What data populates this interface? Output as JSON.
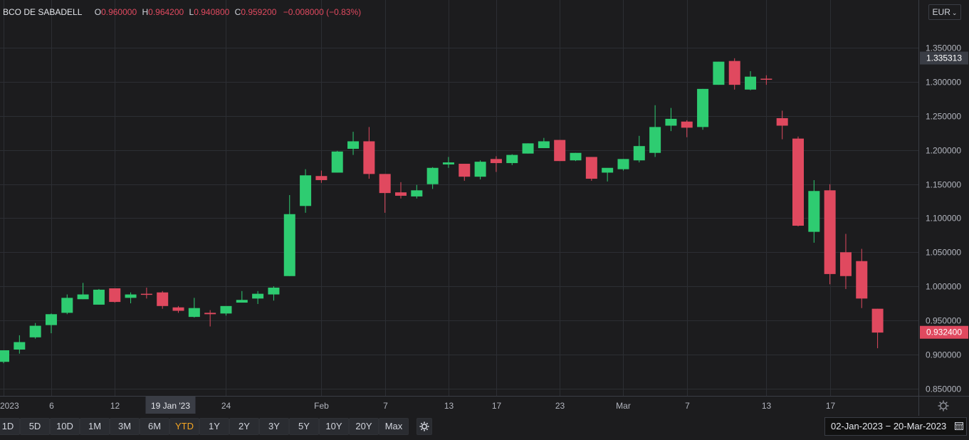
{
  "header": {
    "symbol": "BCO DE SABADELL",
    "open_label": "O",
    "open_value": "0.960000",
    "high_label": "H",
    "high_value": "0.964200",
    "low_label": "L",
    "low_value": "0.940800",
    "close_label": "C",
    "close_value": "0.959200",
    "change": "−0.008000 (−0.83%)"
  },
  "currency": {
    "label": "EUR"
  },
  "ranges": [
    "1D",
    "5D",
    "10D",
    "1M",
    "3M",
    "6M",
    "YTD",
    "1Y",
    "2Y",
    "3Y",
    "5Y",
    "10Y",
    "20Y",
    "Max"
  ],
  "active_range": "YTD",
  "date_range": "02-Jan-2023  −  20-Mar-2023",
  "icons": {
    "settings": "gear-icon",
    "calendar": "calendar-icon",
    "chevron": "chevron-down-icon",
    "corner": "settings-icon"
  },
  "colors": {
    "up": "#2ecc71",
    "down": "#e0495f",
    "background": "#1c1c1e",
    "grid": "#2c2e33",
    "active_range": "#f5a623",
    "last_price_bg": "#e0495f",
    "crosshair_bg": "#3a3d45"
  },
  "chart_data": {
    "type": "candlestick",
    "ylim": [
      0.84,
      1.37
    ],
    "y_ticks": [
      "1.350000",
      "1.300000",
      "1.250000",
      "1.200000",
      "1.150000",
      "1.100000",
      "1.050000",
      "1.000000",
      "0.950000",
      "0.900000",
      "0.850000"
    ],
    "x_ticks": [
      "2023",
      "6",
      "12",
      "19 Jan '23",
      "24",
      "Feb",
      "7",
      "13",
      "17",
      "23",
      "Mar",
      "7",
      "13",
      "17"
    ],
    "highlighted_x_label": "19 Jan '23",
    "price_labels": [
      {
        "value": 1.335313,
        "text": "1.335313",
        "style": "crosshair"
      },
      {
        "value": 0.9324,
        "text": "0.932400",
        "style": "last"
      }
    ],
    "candles": [
      {
        "o": 0.889,
        "h": 0.905,
        "l": 0.887,
        "c": 0.906
      },
      {
        "o": 0.907,
        "h": 0.928,
        "l": 0.901,
        "c": 0.918
      },
      {
        "o": 0.925,
        "h": 0.946,
        "l": 0.923,
        "c": 0.942
      },
      {
        "o": 0.943,
        "h": 0.96,
        "l": 0.931,
        "c": 0.959
      },
      {
        "o": 0.961,
        "h": 0.988,
        "l": 0.959,
        "c": 0.983
      },
      {
        "o": 0.981,
        "h": 1.005,
        "l": 0.981,
        "c": 0.988
      },
      {
        "o": 0.973,
        "h": 0.996,
        "l": 0.973,
        "c": 0.995
      },
      {
        "o": 0.997,
        "h": 0.997,
        "l": 0.976,
        "c": 0.977
      },
      {
        "o": 0.983,
        "h": 0.991,
        "l": 0.975,
        "c": 0.988
      },
      {
        "o": 0.989,
        "h": 0.998,
        "l": 0.982,
        "c": 0.988
      },
      {
        "o": 0.991,
        "h": 0.993,
        "l": 0.967,
        "c": 0.971
      },
      {
        "o": 0.969,
        "h": 0.971,
        "l": 0.961,
        "c": 0.964
      },
      {
        "o": 0.955,
        "h": 0.983,
        "l": 0.954,
        "c": 0.968
      },
      {
        "o": 0.961,
        "h": 0.965,
        "l": 0.941,
        "c": 0.959
      },
      {
        "o": 0.96,
        "h": 0.97,
        "l": 0.957,
        "c": 0.971
      },
      {
        "o": 0.976,
        "h": 0.993,
        "l": 0.976,
        "c": 0.98
      },
      {
        "o": 0.982,
        "h": 0.993,
        "l": 0.974,
        "c": 0.989
      },
      {
        "o": 0.988,
        "h": 1.0,
        "l": 0.979,
        "c": 0.998
      },
      {
        "o": 1.015,
        "h": 1.134,
        "l": 1.015,
        "c": 1.106
      },
      {
        "o": 1.118,
        "h": 1.172,
        "l": 1.108,
        "c": 1.163
      },
      {
        "o": 1.162,
        "h": 1.17,
        "l": 1.152,
        "c": 1.156
      },
      {
        "o": 1.167,
        "h": 1.199,
        "l": 1.167,
        "c": 1.198
      },
      {
        "o": 1.202,
        "h": 1.227,
        "l": 1.193,
        "c": 1.213
      },
      {
        "o": 1.213,
        "h": 1.234,
        "l": 1.158,
        "c": 1.165
      },
      {
        "o": 1.165,
        "h": 1.165,
        "l": 1.108,
        "c": 1.137
      },
      {
        "o": 1.138,
        "h": 1.153,
        "l": 1.129,
        "c": 1.133
      },
      {
        "o": 1.132,
        "h": 1.149,
        "l": 1.129,
        "c": 1.141
      },
      {
        "o": 1.15,
        "h": 1.175,
        "l": 1.143,
        "c": 1.174
      },
      {
        "o": 1.179,
        "h": 1.19,
        "l": 1.174,
        "c": 1.182
      },
      {
        "o": 1.18,
        "h": 1.18,
        "l": 1.155,
        "c": 1.161
      },
      {
        "o": 1.161,
        "h": 1.185,
        "l": 1.157,
        "c": 1.183
      },
      {
        "o": 1.187,
        "h": 1.191,
        "l": 1.168,
        "c": 1.181
      },
      {
        "o": 1.181,
        "h": 1.194,
        "l": 1.178,
        "c": 1.193
      },
      {
        "o": 1.195,
        "h": 1.21,
        "l": 1.195,
        "c": 1.21
      },
      {
        "o": 1.203,
        "h": 1.218,
        "l": 1.203,
        "c": 1.213
      },
      {
        "o": 1.215,
        "h": 1.215,
        "l": 1.184,
        "c": 1.184
      },
      {
        "o": 1.185,
        "h": 1.196,
        "l": 1.184,
        "c": 1.196
      },
      {
        "o": 1.19,
        "h": 1.19,
        "l": 1.155,
        "c": 1.158
      },
      {
        "o": 1.167,
        "h": 1.173,
        "l": 1.154,
        "c": 1.174
      },
      {
        "o": 1.172,
        "h": 1.187,
        "l": 1.17,
        "c": 1.187
      },
      {
        "o": 1.185,
        "h": 1.221,
        "l": 1.182,
        "c": 1.206
      },
      {
        "o": 1.196,
        "h": 1.266,
        "l": 1.19,
        "c": 1.234
      },
      {
        "o": 1.236,
        "h": 1.262,
        "l": 1.228,
        "c": 1.246
      },
      {
        "o": 1.242,
        "h": 1.244,
        "l": 1.219,
        "c": 1.233
      },
      {
        "o": 1.234,
        "h": 1.29,
        "l": 1.23,
        "c": 1.29
      },
      {
        "o": 1.296,
        "h": 1.33,
        "l": 1.296,
        "c": 1.33
      },
      {
        "o": 1.331,
        "h": 1.335,
        "l": 1.289,
        "c": 1.296
      },
      {
        "o": 1.289,
        "h": 1.316,
        "l": 1.288,
        "c": 1.308
      },
      {
        "o": 1.305,
        "h": 1.31,
        "l": 1.296,
        "c": 1.304
      },
      {
        "o": 1.247,
        "h": 1.258,
        "l": 1.216,
        "c": 1.236
      },
      {
        "o": 1.217,
        "h": 1.22,
        "l": 1.088,
        "c": 1.089
      },
      {
        "o": 1.08,
        "h": 1.156,
        "l": 1.064,
        "c": 1.14
      },
      {
        "o": 1.141,
        "h": 1.15,
        "l": 1.003,
        "c": 1.018
      },
      {
        "o": 1.05,
        "h": 1.077,
        "l": 0.996,
        "c": 1.015
      },
      {
        "o": 1.037,
        "h": 1.055,
        "l": 0.968,
        "c": 0.982
      },
      {
        "o": 0.967,
        "h": 0.967,
        "l": 0.909,
        "c": 0.932
      }
    ]
  }
}
